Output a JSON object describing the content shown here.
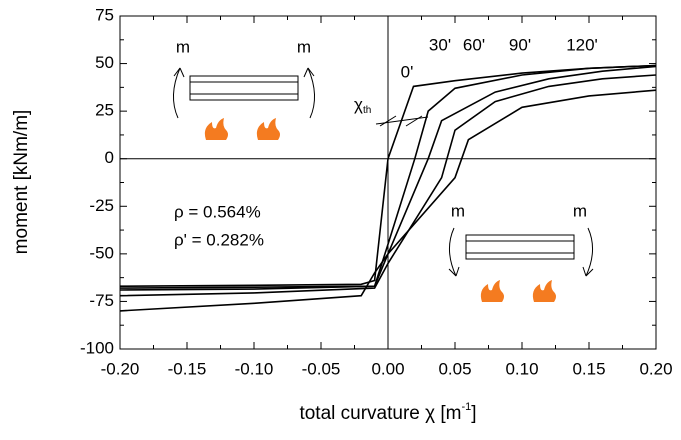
{
  "chart_data": {
    "type": "line",
    "x_label": {
      "text": "total curvature χ [m",
      "sup": "-1",
      "end": "]"
    },
    "y_label": "moment [kNm/m]",
    "xlim": [
      -0.2,
      0.2
    ],
    "xticks": [
      {
        "value": -0.2,
        "label": "-0.20"
      },
      {
        "value": -0.15,
        "label": "-0.15"
      },
      {
        "value": -0.1,
        "label": "-0.10"
      },
      {
        "value": -0.05,
        "label": "-0.05"
      },
      {
        "value": 0,
        "label": "0.00"
      },
      {
        "value": 0.05,
        "label": "0.05"
      },
      {
        "value": 0.1,
        "label": "0.10"
      },
      {
        "value": 0.15,
        "label": "0.15"
      },
      {
        "value": 0.2,
        "label": "0.20"
      }
    ],
    "ylim": [
      -100,
      75
    ],
    "yticks": [
      -100,
      -75,
      -50,
      -25,
      0,
      25,
      50,
      75
    ],
    "grid": false,
    "series": [
      {
        "name": "0'",
        "color": "#000000",
        "x": [
          -0.2,
          -0.1,
          -0.02,
          -0.01,
          0.0,
          0.019,
          0.05,
          0.1,
          0.15,
          0.2
        ],
        "values": [
          -67,
          -66.5,
          -66,
          -64,
          0,
          38,
          41,
          45,
          47.5,
          49
        ]
      },
      {
        "name": "30'",
        "color": "#000000",
        "x": [
          -0.2,
          -0.1,
          -0.01,
          0.0,
          0.02,
          0.03,
          0.05,
          0.1,
          0.15,
          0.2
        ],
        "values": [
          -68,
          -67.5,
          -67,
          -45,
          0,
          25,
          37,
          44,
          47.5,
          49
        ]
      },
      {
        "name": "60'",
        "color": "#000000",
        "x": [
          -0.2,
          -0.1,
          -0.01,
          0.0,
          0.03,
          0.04,
          0.08,
          0.12,
          0.16,
          0.2
        ],
        "values": [
          -69,
          -68.5,
          -67,
          -50,
          0,
          20,
          35,
          42,
          46,
          48.5
        ]
      },
      {
        "name": "90'",
        "color": "#000000",
        "x": [
          -0.2,
          -0.1,
          -0.01,
          0.0,
          0.04,
          0.05,
          0.08,
          0.12,
          0.16,
          0.2
        ],
        "values": [
          -72,
          -70.5,
          -68,
          -55,
          -10,
          15,
          30,
          38,
          42,
          44
        ]
      },
      {
        "name": "120'",
        "color": "#000000",
        "x": [
          -0.2,
          -0.1,
          -0.02,
          -0.01,
          0.0,
          0.05,
          0.06,
          0.1,
          0.15,
          0.2
        ],
        "values": [
          -80,
          -76,
          -72,
          -60,
          -50,
          -10,
          10,
          27,
          33,
          36
        ]
      }
    ],
    "annotations": {
      "m": [
        "m",
        "m",
        "m",
        "m"
      ],
      "chi_th": {
        "text": "χ",
        "sub": "th"
      },
      "rho": "ρ = 0.564%",
      "rho_prime": "ρ' = 0.282%"
    }
  }
}
